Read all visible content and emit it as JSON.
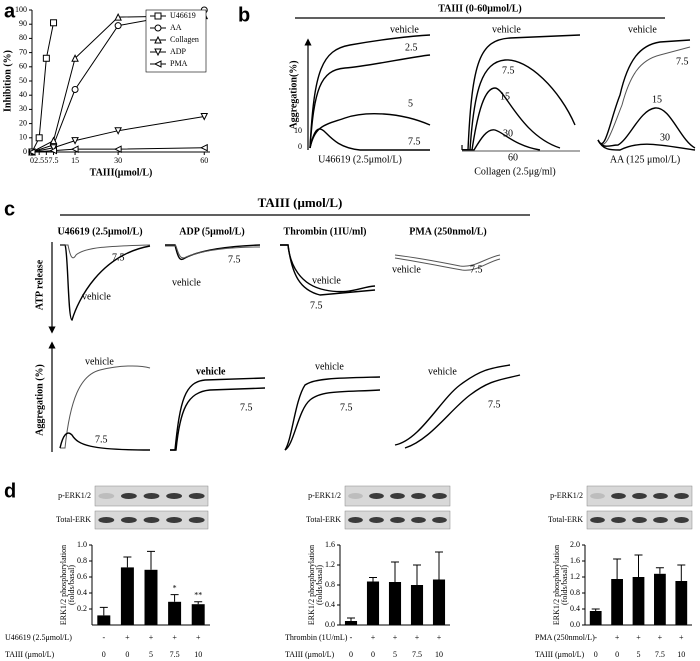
{
  "panel_labels": [
    "a",
    "b",
    "c",
    "d"
  ],
  "chart_data": [
    {
      "type": "line",
      "xlabel": "TAIII(μmol/L)",
      "ylabel": "Inhibition (%)",
      "xlim": [
        0,
        62
      ],
      "ylim": [
        0,
        100
      ],
      "xticks": [
        0,
        2.5,
        5,
        7.5,
        15,
        30,
        60
      ],
      "yticks": [
        0,
        10,
        20,
        30,
        40,
        50,
        60,
        70,
        80,
        90,
        100
      ],
      "legend": "upper right",
      "series": [
        {
          "name": "U46619",
          "color": "#000000",
          "marker": "square",
          "x": [
            0,
            2.5,
            5,
            7.5
          ],
          "values": [
            0,
            10,
            66,
            91
          ]
        },
        {
          "name": "AA",
          "color": "#000000",
          "marker": "circle",
          "x": [
            0,
            7.5,
            15,
            30,
            60
          ],
          "values": [
            0,
            5,
            44,
            89,
            100
          ]
        },
        {
          "name": "Collagen",
          "color": "#000000",
          "marker": "triangle-up",
          "x": [
            0,
            7.5,
            15,
            30,
            60
          ],
          "values": [
            0,
            8,
            66,
            95,
            96
          ]
        },
        {
          "name": "ADP",
          "color": "#000000",
          "marker": "triangle-down",
          "x": [
            0,
            7.5,
            15,
            30,
            60
          ],
          "values": [
            0,
            3,
            8,
            15,
            25
          ]
        },
        {
          "name": "PMA",
          "color": "#000000",
          "marker": "triangle-left",
          "x": [
            0,
            7.5,
            15,
            30,
            60
          ],
          "values": [
            0,
            1,
            2,
            2,
            3
          ]
        }
      ]
    },
    {
      "type": "bar",
      "ylabel": [
        "ERK1/2 phosphorylation",
        "(folds/basal)"
      ],
      "color": "#000000",
      "blot_labels": [
        "p-ERK1/2",
        "Total-ERK"
      ],
      "row_labels": [
        "U46619 (2.5μmol/L)",
        "TAIII (μmol/L)"
      ],
      "treatment": [
        "-",
        "+",
        "+",
        "+",
        "+"
      ],
      "categories": [
        "0",
        "0",
        "5",
        "7.5",
        "10"
      ],
      "values": [
        0.12,
        0.72,
        0.69,
        0.29,
        0.26
      ],
      "errors": [
        0.1,
        0.13,
        0.23,
        0.09,
        0.03
      ],
      "annotations": [
        {
          "index": 3,
          "text": "*"
        },
        {
          "index": 4,
          "text": "**"
        }
      ],
      "ylim": [
        0,
        1.0
      ],
      "yticks": [
        0.2,
        0.4,
        0.6,
        0.8,
        {
          "value": 1,
          "label": "1.0"
        }
      ]
    },
    {
      "type": "bar",
      "ylabel": [
        "ERK1/2 phosphorylation",
        "(folds/basal)"
      ],
      "color": "#000000",
      "blot_labels": [
        "p-ERK1/2",
        "Total-ERK"
      ],
      "row_labels": [
        "Thrombin (1U/mL)",
        "TAIII (μmol/L)"
      ],
      "treatment": [
        "-",
        "+",
        "+",
        "+",
        "+"
      ],
      "categories": [
        "0",
        "0",
        "5",
        "7.5",
        "10"
      ],
      "values": [
        0.08,
        0.87,
        0.86,
        0.8,
        0.91
      ],
      "errors": [
        0.06,
        0.08,
        0.4,
        0.4,
        0.55
      ],
      "ylim": [
        0,
        1.6
      ],
      "yticks": [
        {
          "value": 0,
          "label": "0.0"
        },
        0.4,
        0.8,
        1.2,
        1.6
      ]
    },
    {
      "type": "bar",
      "ylabel": [
        "ERK1/2 phosphorylation",
        "(folds/basal)"
      ],
      "color": "#000000",
      "blot_labels": [
        "p-ERK1/2",
        "Total-ERK"
      ],
      "row_labels": [
        "PMA (250nmol/L)",
        "TAIII (μmol/L)"
      ],
      "treatment": [
        "-",
        "+",
        "+",
        "+",
        "+"
      ],
      "categories": [
        "0",
        "0",
        "5",
        "7.5",
        "10"
      ],
      "values": [
        0.35,
        1.15,
        1.2,
        1.28,
        1.1
      ],
      "errors": [
        0.05,
        0.5,
        0.55,
        0.15,
        0.4
      ],
      "ylim": [
        0,
        2.0
      ],
      "yticks": [
        {
          "value": 0,
          "label": "0.0"
        },
        0.4,
        0.8,
        1.2,
        1.6,
        {
          "value": 2,
          "label": "2.0"
        }
      ]
    }
  ],
  "panel_b": {
    "title": "TAIII (0-60μmol/L)",
    "ylabel": "Aggregation(%)",
    "axis_text": [
      "10",
      "0"
    ],
    "groups": [
      {
        "label": "U46619 (2.5μmol/L)",
        "traces": [
          "vehicle",
          "2.5",
          "5",
          "7.5"
        ]
      },
      {
        "label": "Collagen (2.5μg/ml)",
        "traces": [
          "vehicle",
          "7.5",
          "15",
          "30",
          "60"
        ]
      },
      {
        "label": "AA (125 μmol/L)",
        "traces": [
          "vehicle",
          "7.5",
          "15",
          "30"
        ]
      }
    ]
  },
  "panel_c": {
    "title": "TAIII (μmol/L)",
    "row_labels": [
      "ATP release",
      "Aggregation (%)"
    ],
    "columns": [
      {
        "label": "U46619 (2.5μmol/L)",
        "atp": [
          "7.5",
          "vehicle"
        ],
        "aggregation": [
          "vehicle",
          "7.5"
        ]
      },
      {
        "label": "ADP (5μmol/L)",
        "atp": [
          "vehicle",
          "7.5"
        ],
        "aggregation": [
          "vehicle",
          "7.5"
        ]
      },
      {
        "label": "Thrombin (1IU/ml)",
        "atp": [
          "vehicle",
          "7.5"
        ],
        "aggregation": [
          "vehicle",
          "7.5"
        ]
      },
      {
        "label": "PMA (250nmol/L)",
        "atp": [
          "vehicle",
          "7.5"
        ],
        "aggregation": [
          "vehicle",
          "7.5"
        ]
      }
    ]
  }
}
